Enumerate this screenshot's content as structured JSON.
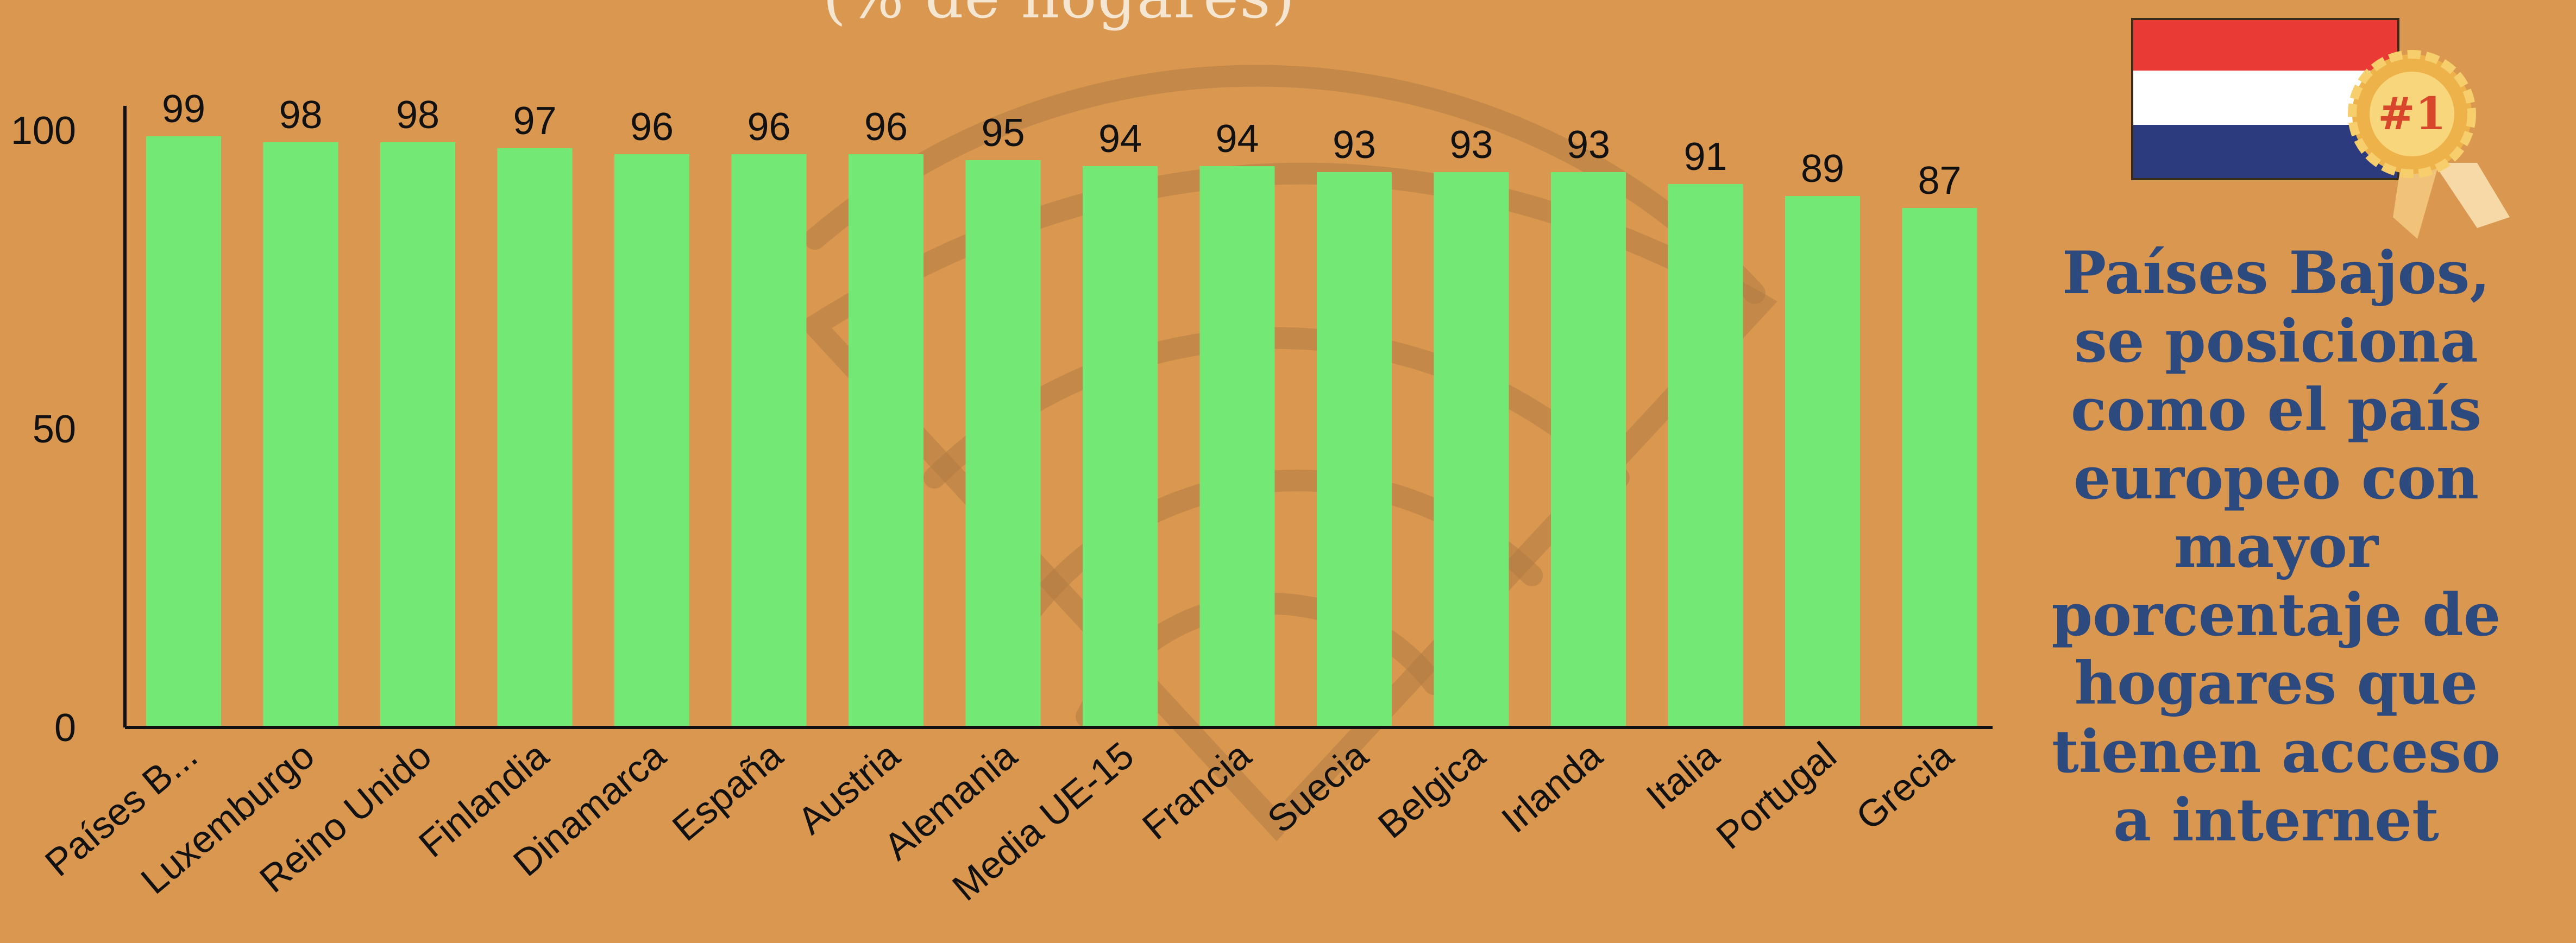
{
  "chart_data": {
    "type": "bar",
    "title": "(% de hogares)",
    "categories": [
      "Países B...",
      "Luxemburgo",
      "Reino Unido",
      "Finlandia",
      "Dinamarca",
      "España",
      "Austria",
      "Alemania",
      "Media UE-15",
      "Francia",
      "Suecia",
      "Belgica",
      "Irlanda",
      "Italia",
      "Portugal",
      "Grecia"
    ],
    "values": [
      99,
      98,
      98,
      97,
      96,
      96,
      96,
      95,
      94,
      94,
      93,
      93,
      93,
      91,
      89,
      87
    ],
    "data_labels": [
      "99",
      "98",
      "98",
      "97",
      "96",
      "96",
      "96",
      "95",
      "94",
      "94",
      "93",
      "93",
      "93",
      "91",
      "89",
      "87"
    ],
    "y_ticks": [
      "0",
      "50",
      "100"
    ],
    "ylim": [
      0,
      100
    ],
    "xlabel": "",
    "ylabel": "",
    "grid": false,
    "bar_color": "#74e874"
  },
  "callout": {
    "lines": [
      "Países Bajos,",
      "se posiciona",
      "como el país",
      "europeo con",
      "mayor",
      "porcentaje de",
      "hogares que",
      "tienen acceso",
      "a internet"
    ]
  },
  "badge": {
    "text": "#1"
  },
  "colors": {
    "background": "#d99750",
    "bar": "#74e874",
    "callout_text": "#2d4a7f",
    "flag_red": "#e93a35",
    "flag_white": "#ffffff",
    "flag_blue": "#2b3b7e",
    "badge_gold": "#f1b94a"
  }
}
